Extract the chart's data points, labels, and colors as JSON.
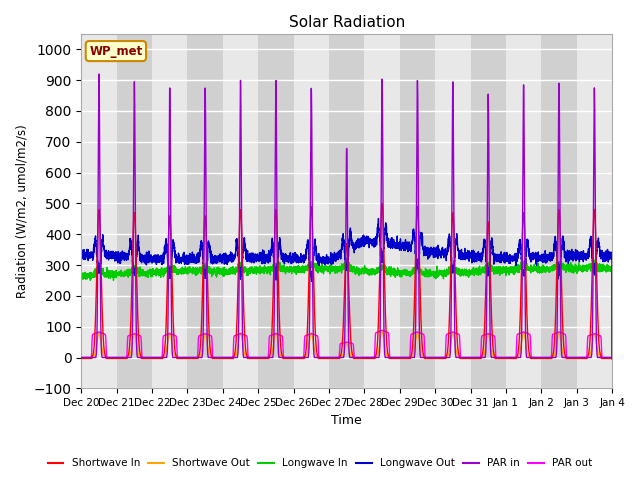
{
  "title": "Solar Radiation",
  "ylabel": "Radiation (W/m2, umol/m2/s)",
  "xlabel": "Time",
  "ylim": [
    -100,
    1050
  ],
  "yticks": [
    -100,
    0,
    100,
    200,
    300,
    400,
    500,
    600,
    700,
    800,
    900,
    1000
  ],
  "bg_color_light": "#e8e8e8",
  "bg_color_dark": "#d0d0d0",
  "grid_color": "white",
  "annotation_text": "WP_met",
  "annotation_bg": "#ffffcc",
  "annotation_border": "#cc8800",
  "series": {
    "shortwave_in": {
      "color": "#ff0000",
      "label": "Shortwave In",
      "lw": 1.0
    },
    "shortwave_out": {
      "color": "#ffa500",
      "label": "Shortwave Out",
      "lw": 1.0
    },
    "longwave_in": {
      "color": "#00cc00",
      "label": "Longwave In",
      "lw": 1.0
    },
    "longwave_out": {
      "color": "#0000cc",
      "label": "Longwave Out",
      "lw": 1.0
    },
    "par_in": {
      "color": "#9900cc",
      "label": "PAR in",
      "lw": 1.0
    },
    "par_out": {
      "color": "#ff00ff",
      "label": "PAR out",
      "lw": 1.0
    }
  },
  "n_days": 15,
  "pts_per_day": 288
}
